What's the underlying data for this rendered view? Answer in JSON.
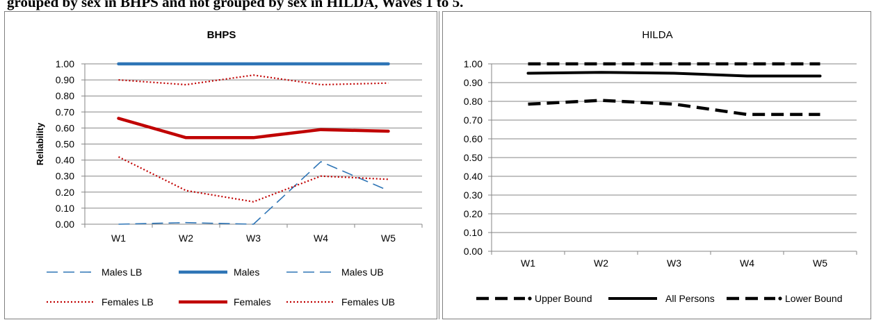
{
  "caption": "grouped by sex in BHPS and not grouped by sex in HILDA, Waves 1 to 5.",
  "chart_data": [
    {
      "type": "line",
      "title": "BHPS",
      "ylabel": "Reliability",
      "xlabel": "",
      "ylim": [
        0,
        1
      ],
      "y_ticks": [
        "0.00",
        "0.10",
        "0.20",
        "0.30",
        "0.40",
        "0.50",
        "0.60",
        "0.70",
        "0.80",
        "0.90",
        "1.00"
      ],
      "categories": [
        "W1",
        "W2",
        "W3",
        "W4",
        "W5"
      ],
      "grid": true,
      "legend_position": "bottom",
      "series": [
        {
          "name": "Males LB",
          "color": "#2e75b6",
          "style": "dashed",
          "values": [
            0.0,
            0.01,
            0.0,
            0.39,
            0.21
          ]
        },
        {
          "name": "Males",
          "color": "#2e75b6",
          "style": "solid",
          "values": [
            1.0,
            1.0,
            1.0,
            1.0,
            1.0
          ]
        },
        {
          "name": "Males UB",
          "color": "#2e75b6",
          "style": "dashed",
          "values": [
            1.0,
            1.0,
            1.0,
            1.0,
            1.0
          ]
        },
        {
          "name": "Females LB",
          "color": "#c00000",
          "style": "dotted",
          "values": [
            0.42,
            0.21,
            0.14,
            0.3,
            0.28
          ]
        },
        {
          "name": "Females",
          "color": "#c00000",
          "style": "solid",
          "values": [
            0.66,
            0.54,
            0.54,
            0.59,
            0.58
          ]
        },
        {
          "name": "Females UB",
          "color": "#c00000",
          "style": "dotted",
          "values": [
            0.9,
            0.87,
            0.93,
            0.87,
            0.88
          ]
        }
      ]
    },
    {
      "type": "line",
      "title": "HILDA",
      "ylabel": "",
      "xlabel": "",
      "ylim": [
        0,
        1
      ],
      "y_ticks": [
        "0.00",
        "0.10",
        "0.20",
        "0.30",
        "0.40",
        "0.50",
        "0.60",
        "0.70",
        "0.80",
        "0.90",
        "1.00"
      ],
      "categories": [
        "W1",
        "W2",
        "W3",
        "W4",
        "W5"
      ],
      "grid": true,
      "legend_position": "bottom",
      "series": [
        {
          "name": "Upper Bound",
          "color": "#000000",
          "style": "longdash",
          "values": [
            1.0,
            1.0,
            1.0,
            1.0,
            1.0
          ]
        },
        {
          "name": "All Persons",
          "color": "#000000",
          "style": "solid",
          "values": [
            0.95,
            0.955,
            0.95,
            0.935,
            0.935
          ]
        },
        {
          "name": "Lower Bound",
          "color": "#000000",
          "style": "longdash",
          "values": [
            0.785,
            0.805,
            0.785,
            0.73,
            0.73
          ]
        }
      ]
    }
  ]
}
